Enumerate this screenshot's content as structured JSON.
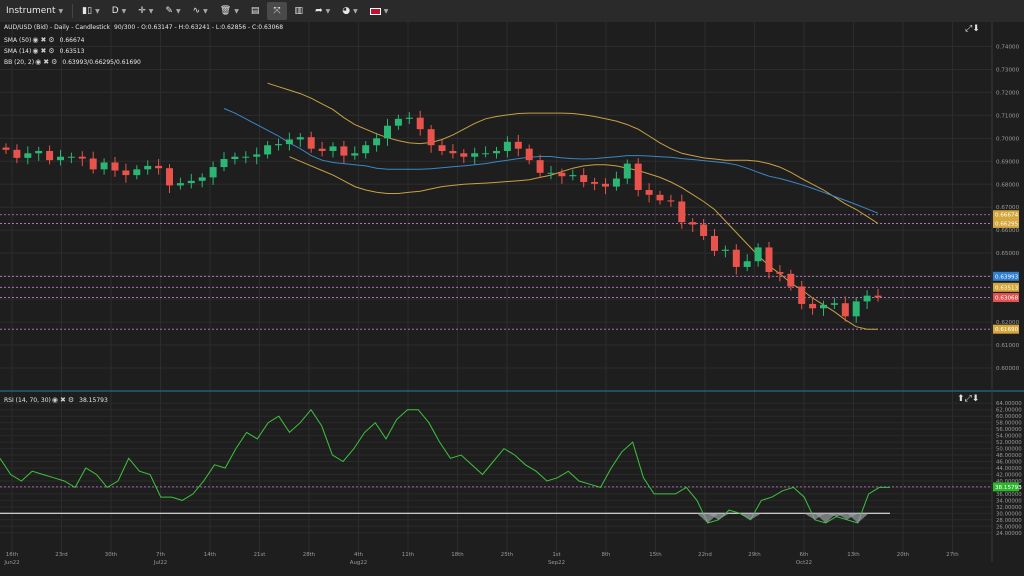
{
  "toolbar": {
    "instrument_label": "Instrument",
    "timeframe_label": "D",
    "icons": [
      "candles-icon",
      "crosshair-icon",
      "pencil-icon",
      "indicators-icon",
      "trash-icon",
      "layout-icon",
      "compare-icon",
      "bar-chart-icon",
      "share-icon",
      "theme-icon",
      "flag-uk-icon"
    ]
  },
  "price_panel": {
    "legend": {
      "main": "AUD/USD (Bid) - Daily - Candlestick",
      "ohlc": "90/300 - O:0.63147 - H:0.63241 - L:0.62856 - C:0.63068",
      "sma50_label": "SMA (50)",
      "sma50_value": "0.66674",
      "sma14_label": "SMA (14)",
      "sma14_value": "0.63513",
      "bb_label": "BB (20, 2)",
      "bb_value": "0.63993/0.66295/0.61690"
    },
    "y_ticks": [
      "0.74000",
      "0.73000",
      "0.72000",
      "0.71000",
      "0.70000",
      "0.69000",
      "0.68000",
      "0.67000",
      "0.66000",
      "0.65000",
      "0.64000",
      "0.63000",
      "0.62000",
      "0.61000",
      "0.60000"
    ],
    "price_tags": [
      {
        "text": "0.66674",
        "value": 0.66674,
        "color": "#d4a73c"
      },
      {
        "text": "0.66295",
        "value": 0.66295,
        "color": "#d4a73c"
      },
      {
        "text": "0.63993",
        "value": 0.63993,
        "color": "#2f7fd1"
      },
      {
        "text": "0.63513",
        "value": 0.63513,
        "color": "#d4a73c"
      },
      {
        "text": "0.63068",
        "value": 0.63068,
        "color": "#e05252"
      },
      {
        "text": "0.61690",
        "value": 0.6169,
        "color": "#d4a73c"
      }
    ],
    "colors": {
      "up": "#2bb673",
      "down": "#e8534b",
      "sma50": "#3b86c8",
      "bb": "#c9a044",
      "hline": "#c77ad6"
    }
  },
  "rsi_panel": {
    "legend": {
      "label": "RSI (14, 70, 30)",
      "value": "38.15793"
    },
    "y_ticks": [
      "64.00000",
      "62.00000",
      "60.00000",
      "58.00000",
      "56.00000",
      "54.00000",
      "52.00000",
      "50.00000",
      "48.00000",
      "46.00000",
      "44.00000",
      "42.00000",
      "40.00000",
      "38.00000",
      "36.00000",
      "34.00000",
      "32.00000",
      "30.00000",
      "28.00000",
      "26.00000",
      "24.00000"
    ],
    "current_tag": "38.15793",
    "colors": {
      "line": "#3cc43c",
      "ref": "#c77ad6"
    }
  },
  "x_axis": {
    "ticks": [
      {
        "label": "16th",
        "sub": "Jun22"
      },
      {
        "label": "23rd",
        "sub": ""
      },
      {
        "label": "30th",
        "sub": ""
      },
      {
        "label": "7th",
        "sub": "Jul22"
      },
      {
        "label": "14th",
        "sub": ""
      },
      {
        "label": "21st",
        "sub": ""
      },
      {
        "label": "28th",
        "sub": ""
      },
      {
        "label": "4th",
        "sub": "Aug22"
      },
      {
        "label": "11th",
        "sub": ""
      },
      {
        "label": "18th",
        "sub": ""
      },
      {
        "label": "25th",
        "sub": ""
      },
      {
        "label": "1st",
        "sub": "Sep22"
      },
      {
        "label": "8th",
        "sub": ""
      },
      {
        "label": "15th",
        "sub": ""
      },
      {
        "label": "22nd",
        "sub": ""
      },
      {
        "label": "29th",
        "sub": ""
      },
      {
        "label": "6th",
        "sub": "Oct22"
      },
      {
        "label": "13th",
        "sub": ""
      },
      {
        "label": "20th",
        "sub": ""
      },
      {
        "label": "27th",
        "sub": ""
      }
    ]
  },
  "chart_data": {
    "type": "candlestick",
    "title": "AUD/USD (Bid) - Daily - Candlestick",
    "price_range": [
      0.6,
      0.745
    ],
    "rsi_range": [
      23,
      65
    ],
    "closes": [
      0.695,
      0.6915,
      0.6935,
      0.6945,
      0.6905,
      0.692,
      0.692,
      0.6912,
      0.6865,
      0.6895,
      0.686,
      0.684,
      0.6865,
      0.688,
      0.687,
      0.6795,
      0.6805,
      0.6815,
      0.683,
      0.6875,
      0.691,
      0.692,
      0.692,
      0.693,
      0.697,
      0.6975,
      0.6995,
      0.7005,
      0.6955,
      0.6945,
      0.6965,
      0.6925,
      0.6935,
      0.697,
      0.7,
      0.7055,
      0.7085,
      0.709,
      0.704,
      0.697,
      0.6945,
      0.6935,
      0.692,
      0.6935,
      0.6935,
      0.6945,
      0.6985,
      0.6955,
      0.6905,
      0.685,
      0.685,
      0.6835,
      0.684,
      0.681,
      0.6802,
      0.679,
      0.6825,
      0.689,
      0.6775,
      0.6754,
      0.673,
      0.6725,
      0.6635,
      0.6625,
      0.6575,
      0.651,
      0.6515,
      0.644,
      0.6465,
      0.6525,
      0.6418,
      0.641,
      0.6355,
      0.6279,
      0.626,
      0.6275,
      0.6282,
      0.6225,
      0.629,
      0.6315,
      0.6307
    ],
    "sma50": [
      0.713,
      0.711,
      0.7085,
      0.706,
      0.7035,
      0.701,
      0.698,
      0.6955,
      0.6925,
      0.6905,
      0.6895,
      0.689,
      0.6885,
      0.688,
      0.687,
      0.6865,
      0.6865,
      0.6865,
      0.6865,
      0.6868,
      0.6872,
      0.6876,
      0.688,
      0.6885,
      0.689,
      0.6898,
      0.6905,
      0.6912,
      0.6918,
      0.6921,
      0.6921,
      0.6915,
      0.6912,
      0.691,
      0.6912,
      0.6916,
      0.692,
      0.6925,
      0.6925,
      0.6923,
      0.692,
      0.6918,
      0.6912,
      0.6908,
      0.6903,
      0.6898,
      0.6893,
      0.6885,
      0.687,
      0.6852,
      0.6835,
      0.6825,
      0.6812,
      0.6798,
      0.6782,
      0.6765,
      0.6747,
      0.673,
      0.6712,
      0.6693,
      0.6674
    ],
    "bb_upper": [
      0.724,
      0.7225,
      0.721,
      0.7195,
      0.7175,
      0.715,
      0.7125,
      0.709,
      0.706,
      0.704,
      0.702,
      0.7003,
      0.699,
      0.698,
      0.6977,
      0.6982,
      0.6995,
      0.7015,
      0.704,
      0.7065,
      0.7085,
      0.7095,
      0.7102,
      0.7108,
      0.711,
      0.711,
      0.711,
      0.711,
      0.7108,
      0.7103,
      0.7095,
      0.7085,
      0.7075,
      0.706,
      0.704,
      0.701,
      0.698,
      0.6955,
      0.6935,
      0.6925,
      0.6915,
      0.691,
      0.6905,
      0.6905,
      0.6905,
      0.69,
      0.689,
      0.6875,
      0.6852,
      0.6825,
      0.68,
      0.6775,
      0.6745,
      0.6715,
      0.669,
      0.666,
      0.6629
    ],
    "bb_lower": [
      0.692,
      0.69,
      0.688,
      0.686,
      0.684,
      0.6815,
      0.679,
      0.6775,
      0.6765,
      0.676,
      0.676,
      0.6765,
      0.677,
      0.678,
      0.679,
      0.6795,
      0.68,
      0.6803,
      0.6805,
      0.6808,
      0.6812,
      0.6815,
      0.682,
      0.683,
      0.684,
      0.6855,
      0.687,
      0.688,
      0.6885,
      0.6885,
      0.688,
      0.687,
      0.686,
      0.6845,
      0.683,
      0.681,
      0.6785,
      0.6755,
      0.6725,
      0.669,
      0.664,
      0.659,
      0.654,
      0.649,
      0.6445,
      0.641,
      0.637,
      0.634,
      0.6305,
      0.6275,
      0.6245,
      0.621,
      0.618,
      0.6169,
      0.6169
    ],
    "rsi": [
      47,
      42,
      40,
      43,
      42,
      41,
      40,
      38,
      44,
      42,
      38,
      40,
      47,
      43,
      42,
      35,
      35,
      34,
      36,
      40,
      45,
      44,
      50,
      55,
      53,
      58,
      60,
      55,
      58,
      62,
      57,
      48,
      46,
      50,
      55,
      58,
      53,
      59,
      62,
      62,
      58,
      52,
      47,
      48,
      45,
      42,
      46,
      50,
      48,
      45,
      43,
      40,
      41,
      43,
      40,
      39,
      38,
      44,
      49,
      52,
      41,
      36,
      36,
      36,
      38,
      34,
      27,
      28,
      31,
      30,
      28,
      34,
      35,
      37,
      38,
      35,
      28,
      27,
      29,
      28,
      27,
      36,
      38,
      38
    ]
  }
}
